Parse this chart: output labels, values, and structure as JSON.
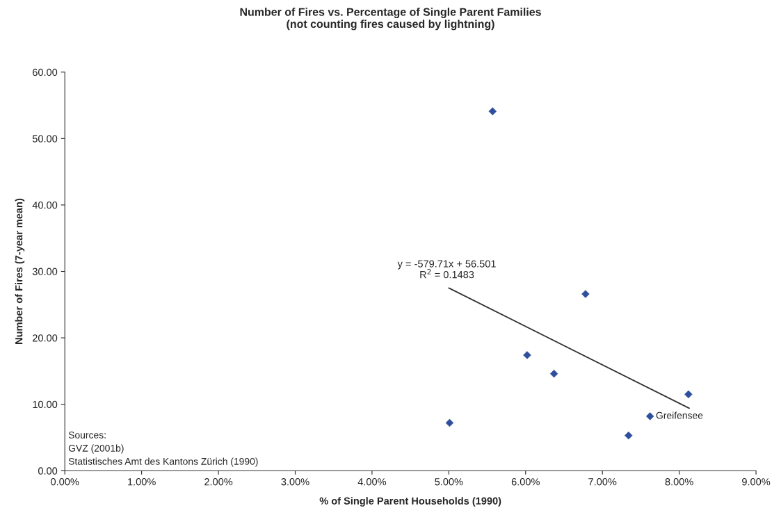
{
  "chart_data": {
    "type": "scatter",
    "title": "Number of Fires vs. Percentage of Single Parent Families\n(not counting fires caused by lightning)",
    "xlabel": "% of Single Parent Households (1990)",
    "ylabel": "Number of Fires (7-year mean)",
    "series": [
      {
        "color": "#2e4f9c",
        "marker": "diamond",
        "x": [
          5.01,
          5.57,
          6.02,
          6.37,
          6.78,
          7.34,
          7.62,
          8.12
        ],
        "values": [
          7.2,
          54.1,
          17.4,
          14.6,
          26.6,
          5.3,
          8.2,
          11.5
        ]
      },
      {
        "type": "line",
        "color": "#333333",
        "marker": "none",
        "line_style": "solid",
        "x": [
          5.0,
          8.13
        ],
        "values": [
          27.5,
          9.4
        ]
      }
    ],
    "xlim": [
      0,
      9
    ],
    "xticks": [
      {
        "value": 0,
        "label": "0.00%"
      },
      {
        "value": 1,
        "label": "1.00%"
      },
      {
        "value": 2,
        "label": "2.00%"
      },
      {
        "value": 3,
        "label": "3.00%"
      },
      {
        "value": 4,
        "label": "4.00%"
      },
      {
        "value": 5,
        "label": "5.00%"
      },
      {
        "value": 6,
        "label": "6.00%"
      },
      {
        "value": 7,
        "label": "7.00%"
      },
      {
        "value": 8,
        "label": "8.00%"
      },
      {
        "value": 9,
        "label": "9.00%"
      }
    ],
    "ylim": [
      0,
      60
    ],
    "yticks": [
      {
        "value": 0,
        "label": "0.00"
      },
      {
        "value": 10,
        "label": "10.00"
      },
      {
        "value": 20,
        "label": "20.00"
      },
      {
        "value": 30,
        "label": "30.00"
      },
      {
        "value": 40,
        "label": "40.00"
      },
      {
        "value": 50,
        "label": "50.00"
      },
      {
        "value": 60,
        "label": "60.00"
      }
    ],
    "grid": false,
    "legend": false,
    "annotations": [
      {
        "text": "y = -579.71x + 56.501\nR$^{2}$ = 0.1483",
        "x": 5.0,
        "y": 27.5
      },
      {
        "text": "Greifensee",
        "x": 7.62,
        "y": 8.2
      },
      "Sources:\nGVZ (2001b)\nStatistisches Amt des Kantons Zürich (1990)"
    ]
  }
}
